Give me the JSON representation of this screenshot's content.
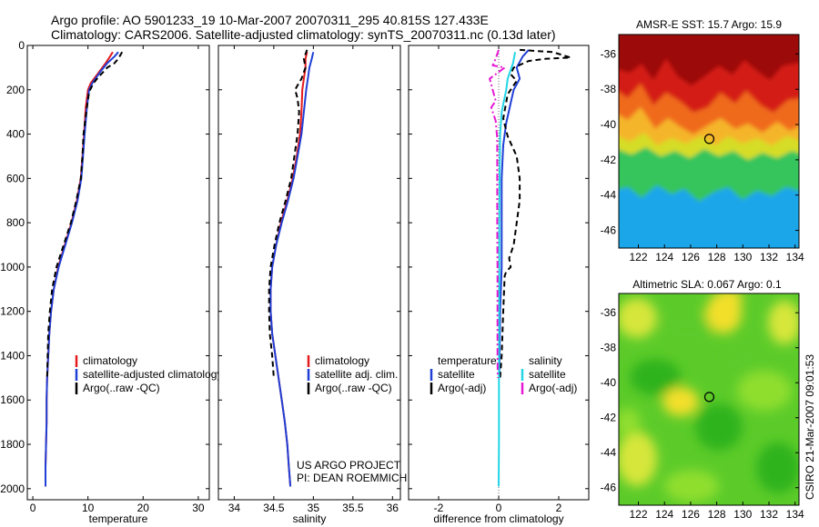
{
  "header": {
    "line1": "Argo profile: AO 5901233_19 10-Mar-2007 20070311_295 40.815S 127.433E",
    "line2": "Climatology: CARS2006. Satellite-adjusted climatology: synTS_20070311.nc (0.13d later)"
  },
  "credits": {
    "project_line1": "US ARGO PROJECT",
    "project_line2": "PI: DEAN ROEMMICH",
    "stamp": "CSIRO 21-Mar-2007 09:01:53"
  },
  "colors": {
    "climatology": "#e41a1c",
    "satellite": "#1f3fd6",
    "argo": "#000000",
    "sat_salinity": "#22d5e6",
    "argo_salinity": "#e619d2"
  },
  "chart_data": [
    {
      "id": "temperature",
      "type": "line",
      "xlabel": "temperature",
      "xlim": [
        -1,
        32
      ],
      "ylim": [
        0,
        2050
      ],
      "y_reversed": true,
      "xticks": [
        0,
        10,
        20,
        30
      ],
      "yticks": [
        0,
        200,
        400,
        600,
        800,
        1000,
        1200,
        1400,
        1600,
        1800,
        2000
      ],
      "legend": {
        "position": "lower-center",
        "entries": [
          "climatology",
          "satellite-adjusted climatology",
          "Argo(..raw -QC)"
        ]
      },
      "series": [
        {
          "name": "climatology",
          "color": "#e41a1c",
          "dash": "",
          "points": [
            [
              14.5,
              30
            ],
            [
              14.0,
              50
            ],
            [
              13.2,
              80
            ],
            [
              12.0,
              120
            ],
            [
              10.5,
              170
            ],
            [
              10.0,
              200
            ],
            [
              9.6,
              280
            ],
            [
              9.3,
              400
            ],
            [
              9.0,
              500
            ],
            [
              8.7,
              600
            ],
            [
              8.0,
              700
            ],
            [
              7.0,
              800
            ],
            [
              5.8,
              900
            ],
            [
              4.6,
              1000
            ],
            [
              3.8,
              1100
            ],
            [
              3.3,
              1200
            ],
            [
              3.0,
              1300
            ],
            [
              2.8,
              1400
            ],
            [
              2.6,
              1500
            ],
            [
              2.5,
              1600
            ],
            [
              2.5,
              1700
            ],
            [
              2.4,
              1800
            ],
            [
              2.3,
              1900
            ],
            [
              2.3,
              1990
            ]
          ]
        },
        {
          "name": "satellite-adjusted climatology",
          "color": "#1f3fd6",
          "dash": "",
          "points": [
            [
              15.5,
              30
            ],
            [
              14.8,
              50
            ],
            [
              13.5,
              80
            ],
            [
              12.2,
              120
            ],
            [
              10.8,
              170
            ],
            [
              10.2,
              200
            ],
            [
              9.8,
              280
            ],
            [
              9.4,
              400
            ],
            [
              9.1,
              500
            ],
            [
              8.8,
              600
            ],
            [
              8.1,
              700
            ],
            [
              7.1,
              800
            ],
            [
              5.9,
              900
            ],
            [
              4.7,
              1000
            ],
            [
              3.8,
              1100
            ],
            [
              3.3,
              1200
            ],
            [
              3.0,
              1300
            ],
            [
              2.8,
              1400
            ],
            [
              2.6,
              1500
            ],
            [
              2.5,
              1600
            ],
            [
              2.5,
              1700
            ],
            [
              2.4,
              1800
            ],
            [
              2.3,
              1900
            ],
            [
              2.3,
              1990
            ]
          ]
        },
        {
          "name": "Argo(..raw -QC)",
          "color": "#000000",
          "dash": "6,4",
          "points": [
            [
              16.2,
              30
            ],
            [
              15.5,
              60
            ],
            [
              14.8,
              80
            ],
            [
              13.5,
              100
            ],
            [
              12.0,
              140
            ],
            [
              11.0,
              170
            ],
            [
              10.2,
              210
            ],
            [
              9.7,
              300
            ],
            [
              9.2,
              400
            ],
            [
              9.0,
              500
            ],
            [
              8.7,
              600
            ],
            [
              7.9,
              700
            ],
            [
              6.9,
              800
            ],
            [
              5.6,
              900
            ],
            [
              4.3,
              1000
            ],
            [
              3.5,
              1100
            ],
            [
              3.1,
              1200
            ],
            [
              2.8,
              1300
            ],
            [
              2.7,
              1400
            ],
            [
              2.6,
              1500
            ]
          ]
        }
      ]
    },
    {
      "id": "salinity",
      "type": "line",
      "xlabel": "salinity",
      "xlim": [
        33.8,
        36.1
      ],
      "ylim": [
        0,
        2050
      ],
      "y_reversed": true,
      "xticks": [
        34,
        34.5,
        35,
        35.5,
        36
      ],
      "yticks": [
        0,
        200,
        400,
        600,
        800,
        1000,
        1200,
        1400,
        1600,
        1800,
        2000
      ],
      "legend": {
        "position": "lower-right",
        "entries": [
          "climatology",
          "satellite adj. clim.",
          "Argo(..raw -QC)"
        ]
      },
      "series": [
        {
          "name": "climatology",
          "color": "#e41a1c",
          "dash": "",
          "points": [
            [
              34.92,
              30
            ],
            [
              34.9,
              60
            ],
            [
              34.9,
              100
            ],
            [
              34.88,
              150
            ],
            [
              34.86,
              200
            ],
            [
              34.85,
              300
            ],
            [
              34.83,
              400
            ],
            [
              34.79,
              500
            ],
            [
              34.74,
              600
            ],
            [
              34.67,
              700
            ],
            [
              34.59,
              800
            ],
            [
              34.53,
              900
            ],
            [
              34.48,
              1000
            ],
            [
              34.46,
              1100
            ],
            [
              34.46,
              1200
            ],
            [
              34.48,
              1300
            ],
            [
              34.52,
              1400
            ],
            [
              34.56,
              1500
            ],
            [
              34.6,
              1600
            ],
            [
              34.64,
              1700
            ],
            [
              34.67,
              1800
            ],
            [
              34.69,
              1900
            ],
            [
              34.71,
              1990
            ]
          ]
        },
        {
          "name": "satellite adj. clim.",
          "color": "#1f3fd6",
          "dash": "",
          "points": [
            [
              35.0,
              30
            ],
            [
              34.98,
              60
            ],
            [
              34.95,
              100
            ],
            [
              34.93,
              150
            ],
            [
              34.91,
              200
            ],
            [
              34.88,
              300
            ],
            [
              34.85,
              400
            ],
            [
              34.8,
              500
            ],
            [
              34.75,
              600
            ],
            [
              34.68,
              700
            ],
            [
              34.6,
              800
            ],
            [
              34.53,
              900
            ],
            [
              34.48,
              1000
            ],
            [
              34.46,
              1100
            ],
            [
              34.46,
              1200
            ],
            [
              34.48,
              1300
            ],
            [
              34.52,
              1400
            ],
            [
              34.56,
              1500
            ],
            [
              34.6,
              1600
            ],
            [
              34.64,
              1700
            ],
            [
              34.67,
              1800
            ],
            [
              34.69,
              1900
            ],
            [
              34.71,
              1990
            ]
          ]
        },
        {
          "name": "Argo(..raw -QC)",
          "color": "#000000",
          "dash": "6,4",
          "points": [
            [
              34.92,
              20
            ],
            [
              34.88,
              60
            ],
            [
              34.9,
              100
            ],
            [
              34.85,
              150
            ],
            [
              34.8,
              180
            ],
            [
              34.77,
              200
            ],
            [
              34.8,
              240
            ],
            [
              34.82,
              300
            ],
            [
              34.8,
              400
            ],
            [
              34.76,
              500
            ],
            [
              34.72,
              600
            ],
            [
              34.65,
              700
            ],
            [
              34.57,
              800
            ],
            [
              34.51,
              900
            ],
            [
              34.46,
              1000
            ],
            [
              34.44,
              1100
            ],
            [
              34.44,
              1200
            ],
            [
              34.45,
              1300
            ],
            [
              34.48,
              1400
            ],
            [
              34.5,
              1500
            ]
          ]
        }
      ]
    },
    {
      "id": "difference",
      "type": "line",
      "xlabel": "difference from climatology",
      "xlim": [
        -3,
        3.0
      ],
      "ylim": [
        0,
        2050
      ],
      "y_reversed": true,
      "xticks": [
        -2,
        0,
        2
      ],
      "yticks": [
        0,
        200,
        400,
        600,
        800,
        1000,
        1200,
        1400,
        1600,
        1800,
        2000
      ],
      "legend": {
        "position": "lower-center",
        "groups": [
          "temperature",
          "salinity"
        ],
        "entries": [
          "satellite",
          "Argo(-adj)",
          "satellite",
          "Argo(-adj)"
        ]
      },
      "series": [
        {
          "name": "temperature satellite",
          "color": "#1f3fd6",
          "dash": "",
          "points": [
            [
              1.0,
              20
            ],
            [
              0.8,
              50
            ],
            [
              0.6,
              100
            ],
            [
              0.7,
              150
            ],
            [
              0.5,
              200
            ],
            [
              0.4,
              260
            ],
            [
              0.25,
              350
            ],
            [
              0.15,
              450
            ],
            [
              0.1,
              600
            ],
            [
              0.1,
              800
            ],
            [
              0.1,
              1000
            ],
            [
              0.05,
              1200
            ],
            [
              0.03,
              1400
            ],
            [
              0.02,
              1500
            ]
          ]
        },
        {
          "name": "temperature Argo(-adj)",
          "color": "#000000",
          "dash": "6,4",
          "points": [
            [
              0.7,
              20
            ],
            [
              1.8,
              30
            ],
            [
              2.4,
              55
            ],
            [
              1.6,
              60
            ],
            [
              1.0,
              70
            ],
            [
              0.5,
              100
            ],
            [
              0.4,
              130
            ],
            [
              0.6,
              160
            ],
            [
              0.3,
              220
            ],
            [
              0.15,
              330
            ],
            [
              0.3,
              410
            ],
            [
              0.6,
              500
            ],
            [
              0.7,
              600
            ],
            [
              0.7,
              700
            ],
            [
              0.6,
              800
            ],
            [
              0.5,
              900
            ],
            [
              0.4,
              940
            ],
            [
              0.35,
              960
            ],
            [
              0.4,
              1000
            ],
            [
              0.25,
              1020
            ],
            [
              0.2,
              1040
            ],
            [
              0.15,
              1200
            ],
            [
              0.1,
              1400
            ],
            [
              0.05,
              1500
            ]
          ]
        },
        {
          "name": "salinity satellite",
          "color": "#22d5e6",
          "dash": "",
          "points": [
            [
              0.55,
              30
            ],
            [
              0.48,
              80
            ],
            [
              0.3,
              150
            ],
            [
              0.25,
              200
            ],
            [
              0.1,
              300
            ],
            [
              0.05,
              400
            ],
            [
              0.03,
              600
            ],
            [
              0.02,
              800
            ],
            [
              0.02,
              1000
            ],
            [
              0.01,
              1400
            ],
            [
              0.01,
              1800
            ],
            [
              0.0,
              1990
            ]
          ]
        },
        {
          "name": "salinity Argo(-adj)",
          "color": "#e619d2",
          "dash": "8,3,2,3",
          "points": [
            [
              0.0,
              20
            ],
            [
              -0.1,
              60
            ],
            [
              -0.2,
              90
            ],
            [
              0.2,
              100
            ],
            [
              -0.3,
              150
            ],
            [
              -0.2,
              200
            ],
            [
              -0.1,
              250
            ],
            [
              -0.25,
              280
            ],
            [
              -0.1,
              340
            ],
            [
              -0.05,
              420
            ],
            [
              -0.05,
              600
            ],
            [
              -0.05,
              800
            ],
            [
              -0.04,
              1000
            ],
            [
              -0.04,
              1200
            ],
            [
              -0.04,
              1400
            ],
            [
              -0.03,
              1500
            ]
          ]
        }
      ]
    },
    {
      "id": "sst_map",
      "type": "heatmap",
      "title": "AMSR-E SST: 15.7 Argo: 15.9",
      "xlim": [
        120.5,
        134.3
      ],
      "ylim": [
        -47,
        -34.9
      ],
      "xticks": [
        122,
        124,
        126,
        128,
        130,
        132,
        134
      ],
      "yticks": [
        -36,
        -38,
        -40,
        -42,
        -44,
        -46
      ],
      "argo_marker": {
        "lon": 127.433,
        "lat": -40.815
      },
      "colorbands": [
        "#9c0a0a",
        "#d41d16",
        "#f06a1f",
        "#f5b52c",
        "#d6dd28",
        "#36c55c",
        "#1aa6ea"
      ]
    },
    {
      "id": "sla_map",
      "type": "heatmap",
      "title": "Altimetric SLA: 0.067 Argo: 0.1",
      "xlim": [
        120.5,
        134.3
      ],
      "ylim": [
        -47,
        -34.9
      ],
      "xticks": [
        122,
        124,
        126,
        128,
        130,
        132,
        134
      ],
      "yticks": [
        -36,
        -38,
        -40,
        -42,
        -44,
        -46
      ],
      "argo_marker": {
        "lon": 127.433,
        "lat": -40.815
      },
      "colorbands": [
        "#2fb31c",
        "#5ccb2a",
        "#8fde2e",
        "#d7e63a",
        "#f2df2a"
      ]
    }
  ]
}
